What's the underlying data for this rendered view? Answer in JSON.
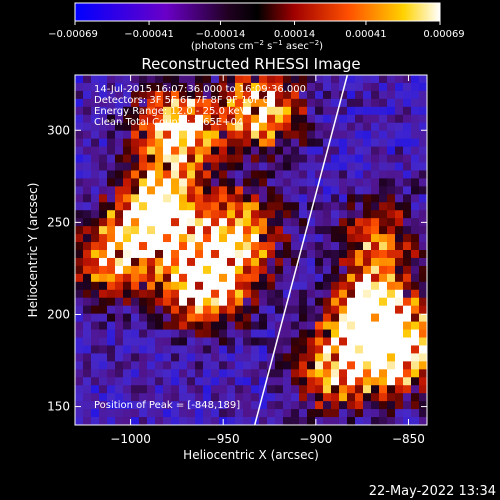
{
  "chart_data": {
    "type": "heatmap",
    "title": "Reconstructed RHESSI Image",
    "xlabel": "Heliocentric X (arcsec)",
    "ylabel": "Heliocentric Y (arcsec)",
    "xlim": [
      -1030,
      -840
    ],
    "ylim": [
      140,
      330
    ],
    "xticks": [
      -1000,
      -950,
      -900,
      -850
    ],
    "xtick_labels": [
      "−1000",
      "−950",
      "−900",
      "−850"
    ],
    "yticks": [
      150,
      200,
      250,
      300
    ],
    "ytick_labels": [
      "150",
      "200",
      "250",
      "300"
    ],
    "colorbar": {
      "ticks": [
        -0.00069,
        -0.00041,
        -0.00014,
        0.00014,
        0.00041,
        0.00069
      ],
      "tick_labels": [
        "−0.00069",
        "−0.00041",
        "−0.00014",
        "0.00014",
        "0.00041",
        "0.00069"
      ],
      "unit_label": "(photons cm",
      "unit_sup1": "−2",
      "unit_mid": " s",
      "unit_sup2": "−1",
      "unit_mid2": " asec",
      "unit_sup3": "−2",
      "unit_end": ")"
    },
    "annotations": [
      "14-Jul-2015 16:07:36.000 to 16:09:36.000",
      "Detectors: 3F 5F 6F 7F 8F 9F 10F 0",
      "Energy Range: 12.0 - 25.0 keV",
      "Clean     Total Counts: 1.65E+04"
    ],
    "peak_label": "Position of Peak = [-848,189]",
    "peak": [
      -848,
      189
    ],
    "limb_line": [
      [
        -933,
        140
      ],
      [
        -883,
        330
      ]
    ],
    "emission_sources": [
      {
        "x": -985,
        "y": 255,
        "strength": 1.0
      },
      {
        "x": -960,
        "y": 215,
        "strength": 0.9
      },
      {
        "x": -975,
        "y": 300,
        "strength": 0.8
      },
      {
        "x": -940,
        "y": 245,
        "strength": 0.7
      },
      {
        "x": -1010,
        "y": 230,
        "strength": 0.6
      },
      {
        "x": -930,
        "y": 310,
        "strength": 0.7
      },
      {
        "x": -870,
        "y": 200,
        "strength": 0.9
      },
      {
        "x": -855,
        "y": 180,
        "strength": 0.8
      },
      {
        "x": -890,
        "y": 170,
        "strength": 0.6
      },
      {
        "x": -865,
        "y": 240,
        "strength": 0.5
      }
    ],
    "colors": {
      "negative": "#0000ff",
      "mid_low": "#3b0a8c",
      "zero": "#000000",
      "low": "#8b0000",
      "mid": "#ff4500",
      "high": "#ffd700",
      "max": "#ffffff"
    }
  },
  "timestamp": "22-May-2022 13:34"
}
